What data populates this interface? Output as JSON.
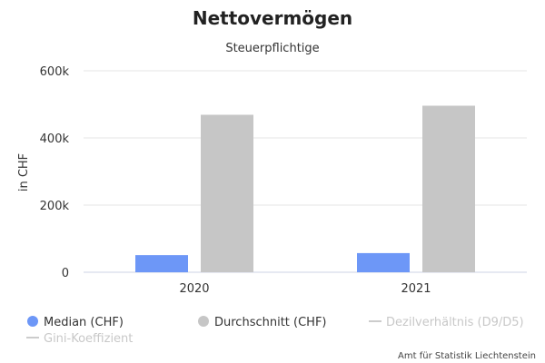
{
  "chart_data": {
    "type": "bar",
    "title": "Nettovermögen",
    "subtitle": "Steuerpflichtige",
    "ylabel": "in CHF",
    "xlabel": "",
    "categories": [
      "2020",
      "2021"
    ],
    "ylim": [
      0,
      600000
    ],
    "yticks": [
      0,
      200000,
      400000,
      600000
    ],
    "ytick_labels": [
      "0",
      "200k",
      "400k",
      "600k"
    ],
    "grid": true,
    "legend_position": "bottom",
    "series": [
      {
        "name": "Median (CHF)",
        "color": "#6d97f7",
        "values": [
          51000,
          57000
        ]
      },
      {
        "name": "Durchschnitt (CHF)",
        "color": "#c6c6c6",
        "values": [
          469000,
          496000
        ]
      }
    ],
    "legend": [
      {
        "label": "Median (CHF)",
        "marker": "circle",
        "color": "#6d97f7",
        "enabled": true
      },
      {
        "label": "Durchschnitt (CHF)",
        "marker": "circle",
        "color": "#c6c6c6",
        "enabled": true
      },
      {
        "label": "Dezilverhältnis (D9/D5)",
        "marker": "line",
        "color": "#cccccc",
        "enabled": false
      },
      {
        "label": "Gini-Koeffizient",
        "marker": "line",
        "color": "#cccccc",
        "enabled": false
      }
    ],
    "credit": "Amt für Statistik Liechtenstein"
  }
}
